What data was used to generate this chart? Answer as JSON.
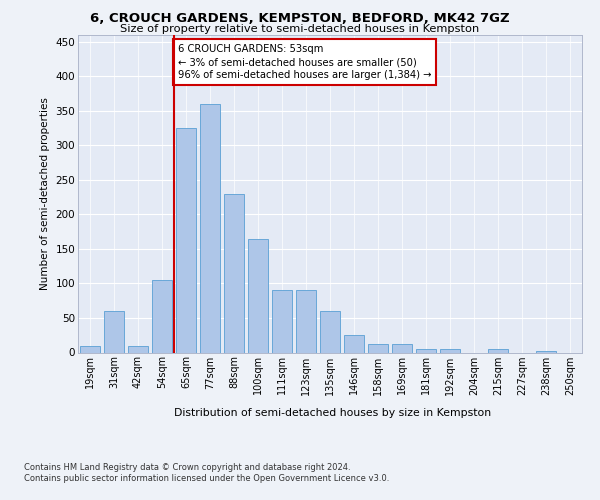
{
  "title1": "6, CROUCH GARDENS, KEMPSTON, BEDFORD, MK42 7GZ",
  "title2": "Size of property relative to semi-detached houses in Kempston",
  "xlabel": "Distribution of semi-detached houses by size in Kempston",
  "ylabel": "Number of semi-detached properties",
  "categories": [
    "19sqm",
    "31sqm",
    "42sqm",
    "54sqm",
    "65sqm",
    "77sqm",
    "88sqm",
    "100sqm",
    "111sqm",
    "123sqm",
    "135sqm",
    "146sqm",
    "158sqm",
    "169sqm",
    "181sqm",
    "192sqm",
    "204sqm",
    "215sqm",
    "227sqm",
    "238sqm",
    "250sqm"
  ],
  "values": [
    10,
    60,
    10,
    105,
    325,
    360,
    230,
    165,
    90,
    90,
    60,
    25,
    12,
    12,
    5,
    5,
    0,
    5,
    0,
    2,
    0
  ],
  "bar_color": "#aec6e8",
  "bar_edge_color": "#5a9fd4",
  "highlight_line_color": "#cc0000",
  "annotation_box_text": "6 CROUCH GARDENS: 53sqm\n← 3% of semi-detached houses are smaller (50)\n96% of semi-detached houses are larger (1,384) →",
  "annotation_box_color": "#cc0000",
  "annotation_box_facecolor": "white",
  "ylim": [
    0,
    460
  ],
  "yticks": [
    0,
    50,
    100,
    150,
    200,
    250,
    300,
    350,
    400,
    450
  ],
  "footer1": "Contains HM Land Registry data © Crown copyright and database right 2024.",
  "footer2": "Contains public sector information licensed under the Open Government Licence v3.0.",
  "bg_color": "#eef2f8",
  "plot_bg_color": "#e4eaf5"
}
